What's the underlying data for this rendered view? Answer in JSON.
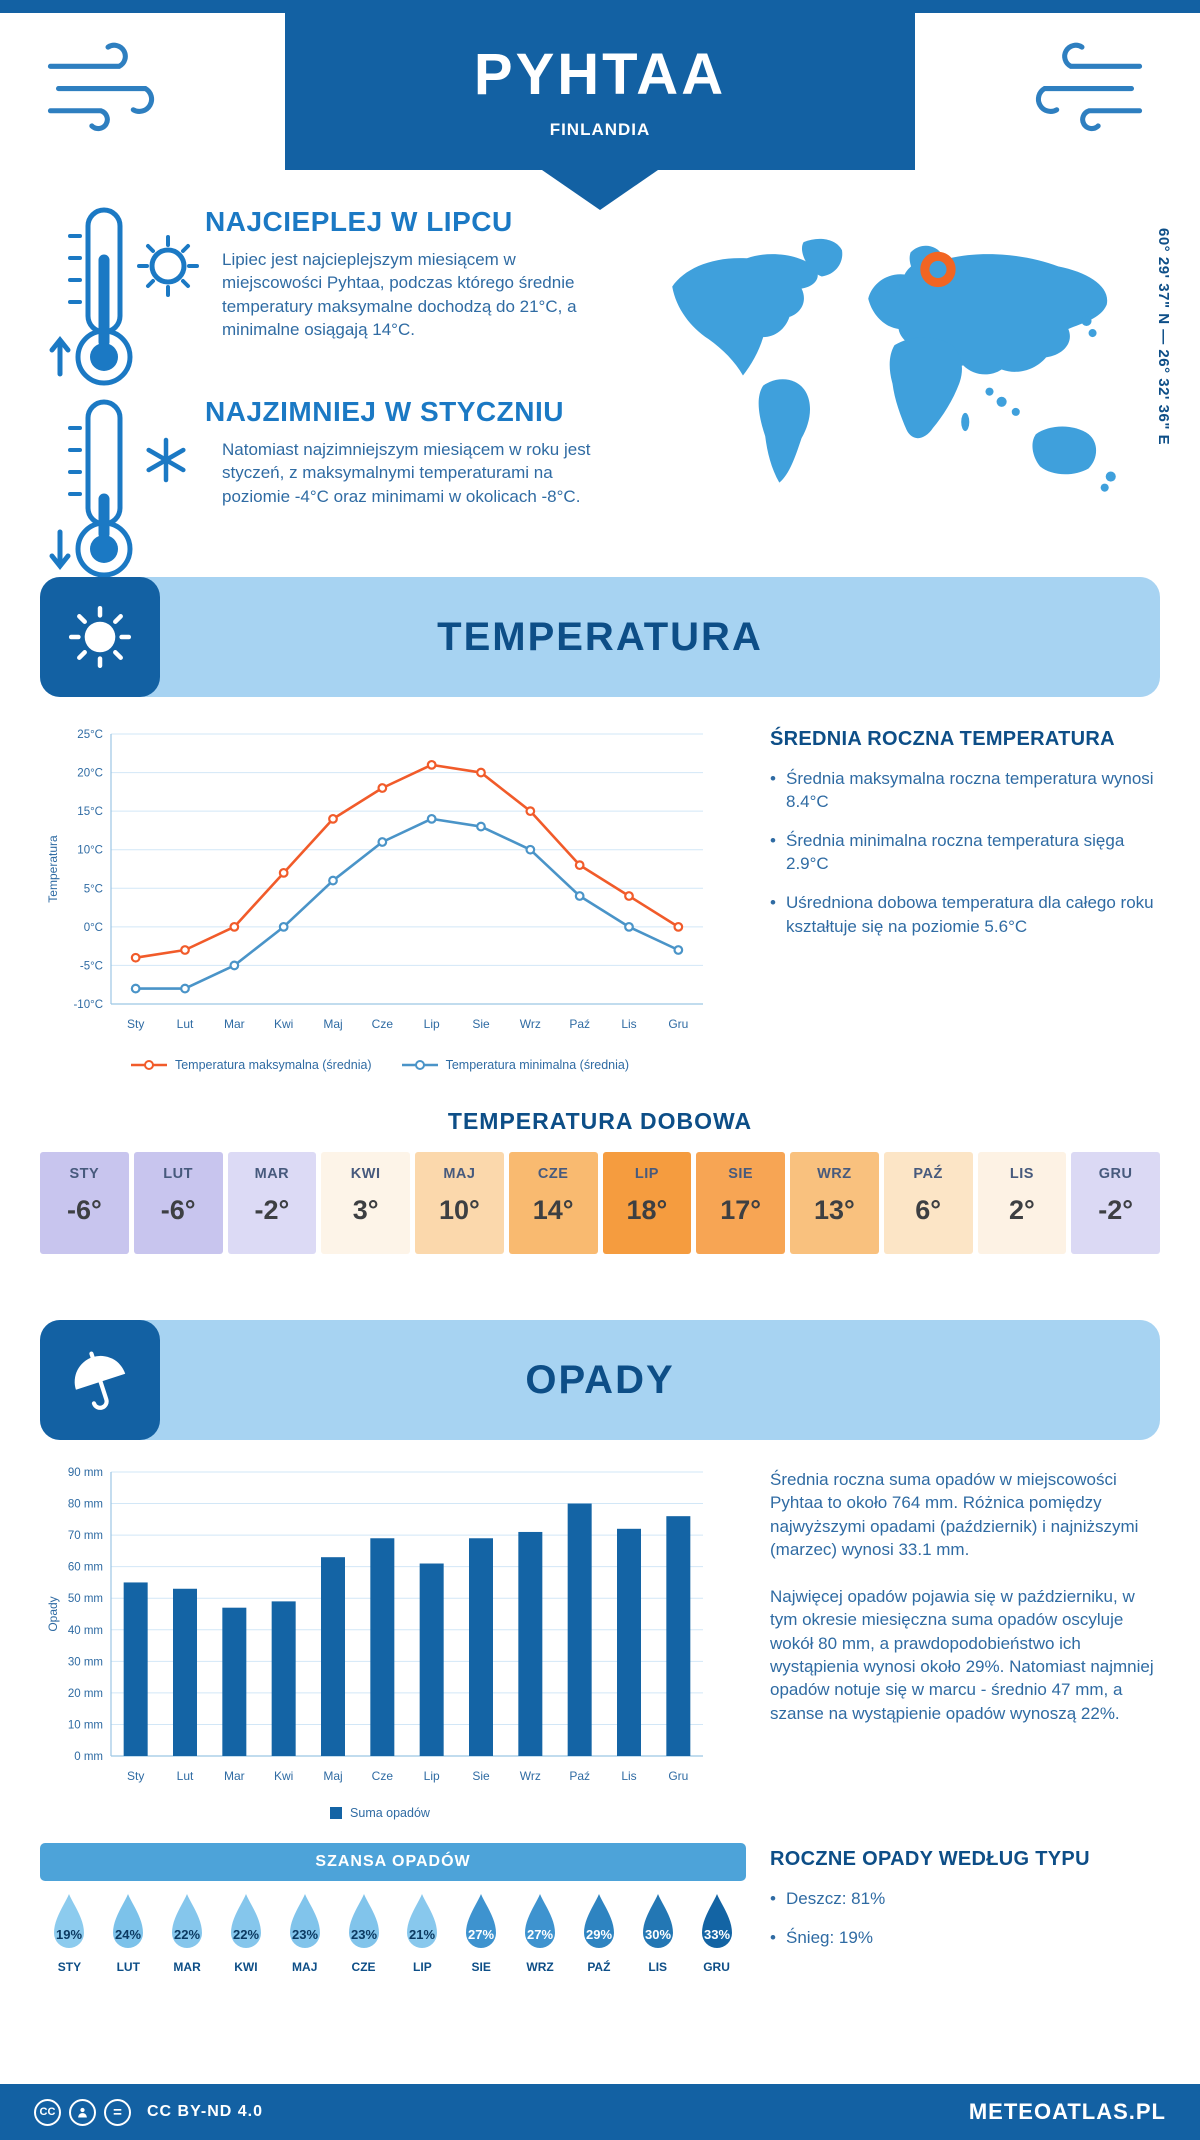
{
  "colors": {
    "brand": "#1361a3",
    "banner_bg": "#a7d3f2",
    "banner_title": "#0d4e87",
    "heading_blue": "#1b79c4",
    "body_text": "#2f6ba3",
    "map_blue": "#3fa0dc",
    "marker_orange": "#f26522",
    "max_line": "#f15b2a",
    "min_line": "#4a94c8",
    "bar_blue": "#1464a5"
  },
  "header": {
    "title": "PYHTAA",
    "subtitle": "FINLANDIA"
  },
  "coordinates": "60° 29' 37\" N — 26° 32' 36\" E",
  "highlights": {
    "warm_title": "NAJCIEPLEJ W LIPCU",
    "warm_text": "Lipiec jest najcieplejszym miesiącem w miejscowości Pyhtaa, podczas którego średnie temperatury maksymalne dochodzą do 21°C, a minimalne osiągają 14°C.",
    "cold_title": "NAJZIMNIEJ W STYCZNIU",
    "cold_text": "Natomiast najzimniejszym miesiącem w roku jest styczeń, z maksymalnymi temperaturami na poziomie -4°C oraz minimami w okolicach -8°C."
  },
  "temperature": {
    "section_title": "TEMPERATURA",
    "annual_title": "ŚREDNIA ROCZNA TEMPERATURA",
    "annual_bullets": [
      "Średnia maksymalna roczna temperatura wynosi 8.4°C",
      "Średnia minimalna roczna temperatura sięga 2.9°C",
      "Uśredniona dobowa temperatura dla całego roku kształtuje się na poziomie 5.6°C"
    ],
    "daily_title": "TEMPERATURA DOBOWA",
    "daily": [
      {
        "month": "STY",
        "value": "-6°",
        "bg": "#c8c5ee"
      },
      {
        "month": "LUT",
        "value": "-6°",
        "bg": "#c8c5ee"
      },
      {
        "month": "MAR",
        "value": "-2°",
        "bg": "#dcdaf5"
      },
      {
        "month": "KWI",
        "value": "3°",
        "bg": "#fdf4e8"
      },
      {
        "month": "MAJ",
        "value": "10°",
        "bg": "#fbd8ac"
      },
      {
        "month": "CZE",
        "value": "14°",
        "bg": "#f9ba70"
      },
      {
        "month": "LIP",
        "value": "18°",
        "bg": "#f59c3f"
      },
      {
        "month": "SIE",
        "value": "17°",
        "bg": "#f7a554"
      },
      {
        "month": "WRZ",
        "value": "13°",
        "bg": "#f9c17e"
      },
      {
        "month": "PAŹ",
        "value": "6°",
        "bg": "#fce5c6"
      },
      {
        "month": "LIS",
        "value": "2°",
        "bg": "#fdf2e4"
      },
      {
        "month": "GRU",
        "value": "-2°",
        "bg": "#dbd9f4"
      }
    ]
  },
  "precipitation": {
    "section_title": "OPADY",
    "summary_paragraphs": [
      "Średnia roczna suma opadów w miejscowości Pyhtaa to około 764 mm. Różnica pomiędzy najwyższymi opadami (październik) i najniższymi (marzec) wynosi 33.1 mm.",
      "Najwięcej opadów pojawia się w październiku, w tym okresie miesięczna suma opadów oscyluje wokół 80 mm, a prawdopodobieństwo ich wystąpienia wynosi około 29%. Natomiast najmniej opadów notuje się w marcu - średnio 47 mm, a szanse na wystąpienie opadów wynoszą 22%."
    ],
    "chance_title": "SZANSA OPADÓW",
    "chance": [
      {
        "month": "STY",
        "value": "19%",
        "bg": "#8ccbee",
        "fg": "#0c3a62"
      },
      {
        "month": "LUT",
        "value": "24%",
        "bg": "#7cc2ea",
        "fg": "#0c3a62"
      },
      {
        "month": "MAR",
        "value": "22%",
        "bg": "#85c6ec",
        "fg": "#0c3a62"
      },
      {
        "month": "KWI",
        "value": "22%",
        "bg": "#85c6ec",
        "fg": "#0c3a62"
      },
      {
        "month": "MAJ",
        "value": "23%",
        "bg": "#81c4eb",
        "fg": "#0c3a62"
      },
      {
        "month": "CZE",
        "value": "23%",
        "bg": "#81c4eb",
        "fg": "#0c3a62"
      },
      {
        "month": "LIP",
        "value": "21%",
        "bg": "#88c8ed",
        "fg": "#0c3a62"
      },
      {
        "month": "SIE",
        "value": "27%",
        "bg": "#3e93cf",
        "fg": "#ffffff"
      },
      {
        "month": "WRZ",
        "value": "27%",
        "bg": "#3e93cf",
        "fg": "#ffffff"
      },
      {
        "month": "PAŹ",
        "value": "29%",
        "bg": "#2e84c1",
        "fg": "#ffffff"
      },
      {
        "month": "LIS",
        "value": "30%",
        "bg": "#2377b4",
        "fg": "#ffffff"
      },
      {
        "month": "GRU",
        "value": "33%",
        "bg": "#1364a4",
        "fg": "#ffffff"
      }
    ],
    "type_title": "ROCZNE OPADY WEDŁUG TYPU",
    "type_bullets": [
      "Deszcz: 81%",
      "Śnieg: 19%"
    ]
  },
  "chart_data": [
    {
      "type": "line",
      "x": [
        "Sty",
        "Lut",
        "Mar",
        "Kwi",
        "Maj",
        "Cze",
        "Lip",
        "Sie",
        "Wrz",
        "Paź",
        "Lis",
        "Gru"
      ],
      "series": [
        {
          "name": "Temperatura maksymalna (średnia)",
          "color": "#f15b2a",
          "values": [
            -4,
            -3,
            0,
            7,
            14,
            18,
            21,
            20,
            15,
            8,
            4,
            0
          ]
        },
        {
          "name": "Temperatura minimalna (średnia)",
          "color": "#4a94c8",
          "values": [
            -8,
            -8,
            -5,
            0,
            6,
            11,
            14,
            13,
            10,
            4,
            0,
            -3
          ]
        }
      ],
      "ylabel": "Temperatura",
      "ylim": [
        -10,
        25
      ],
      "ytick_step": 5,
      "ytick_suffix": "°C",
      "grid": true,
      "legend_position": "bottom"
    },
    {
      "type": "bar",
      "categories": [
        "Sty",
        "Lut",
        "Mar",
        "Kwi",
        "Maj",
        "Cze",
        "Lip",
        "Sie",
        "Wrz",
        "Paź",
        "Lis",
        "Gru"
      ],
      "values": [
        55,
        53,
        47,
        49,
        63,
        69,
        61,
        69,
        71,
        80,
        72,
        76
      ],
      "series_name": "Suma opadów",
      "color": "#1464a5",
      "ylabel": "Opady",
      "ylim": [
        0,
        90
      ],
      "ytick_step": 10,
      "ytick_suffix": " mm",
      "grid": true,
      "legend_position": "bottom"
    }
  ],
  "footer": {
    "license": "CC BY-ND 4.0",
    "site": "METEOATLAS.PL"
  }
}
